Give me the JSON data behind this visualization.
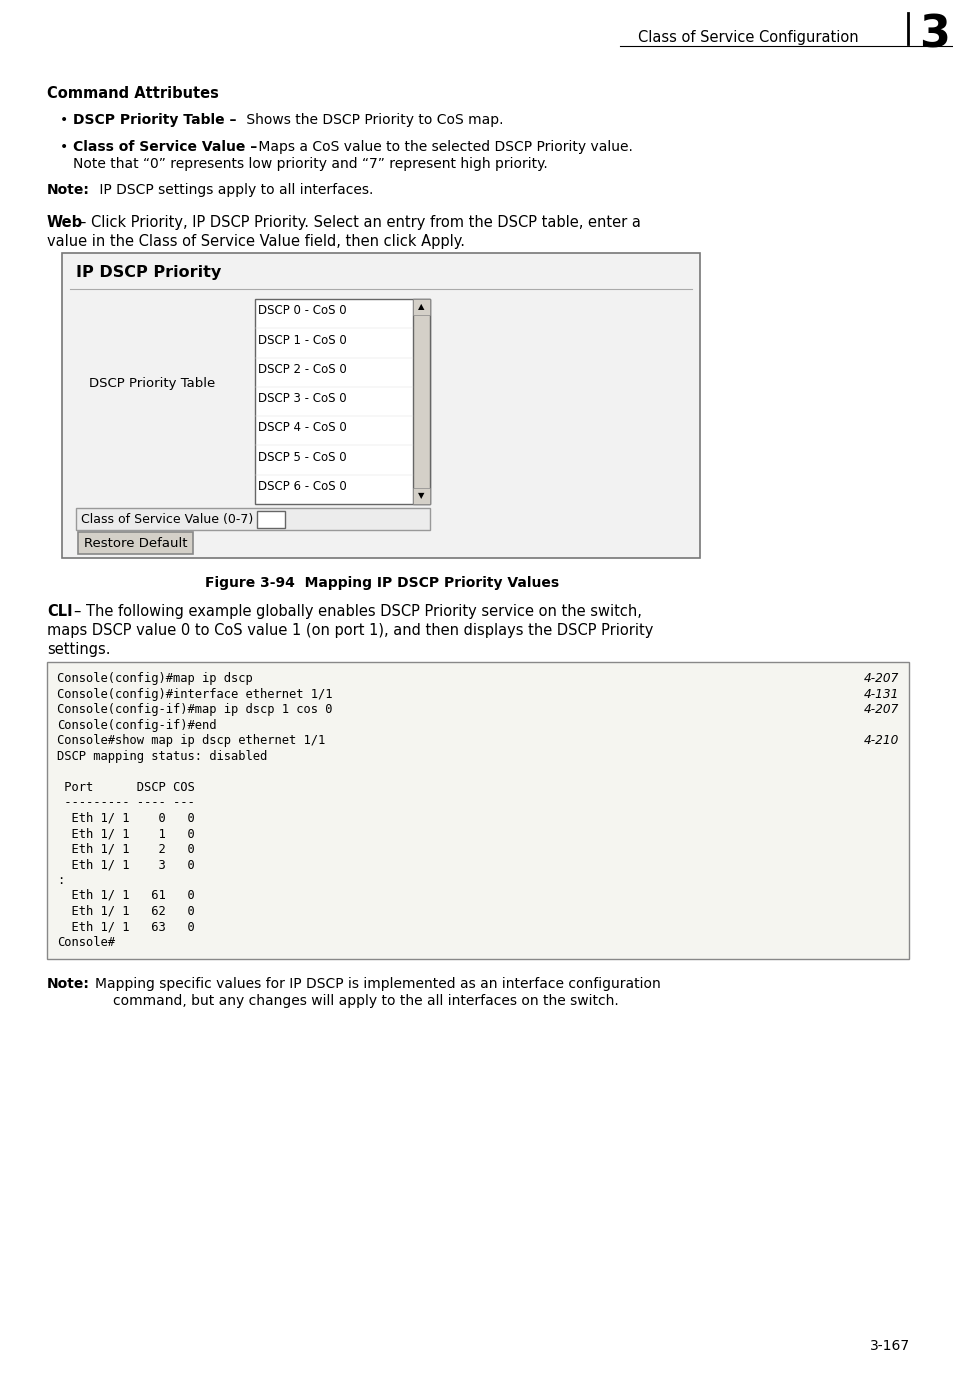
{
  "page_bg": "#ffffff",
  "header_text": "Class of Service Configuration",
  "header_number": "3",
  "section_title": "Command Attributes",
  "note1_bold": "Note:",
  "note1_normal": "  IP DSCP settings apply to all interfaces.",
  "ui_title": "IP DSCP Priority",
  "dscp_list": [
    "DSCP 0 - CoS 0",
    "DSCP 1 - CoS 0",
    "DSCP 2 - CoS 0",
    "DSCP 3 - CoS 0",
    "DSCP 4 - CoS 0",
    "DSCP 5 - CoS 0",
    "DSCP 6 - CoS 0"
  ],
  "dscp_label": "DSCP Priority Table",
  "cos_label": "Class of Service Value (0-7)",
  "button_label": "Restore Default",
  "figure_caption": "Figure 3-94  Mapping IP DSCP Priority Values",
  "code_lines": [
    {
      "left": "Console(config)#map ip dscp",
      "right": "4-207"
    },
    {
      "left": "Console(config)#interface ethernet 1/1",
      "right": "4-131"
    },
    {
      "left": "Console(config-if)#map ip dscp 1 cos 0",
      "right": "4-207"
    },
    {
      "left": "Console(config-if)#end",
      "right": ""
    },
    {
      "left": "Console#show map ip dscp ethernet 1/1",
      "right": "4-210"
    },
    {
      "left": "DSCP mapping status: disabled",
      "right": ""
    },
    {
      "left": "",
      "right": ""
    },
    {
      "left": " Port      DSCP COS",
      "right": ""
    },
    {
      "left": " --------- ---- ---",
      "right": ""
    },
    {
      "left": "  Eth 1/ 1    0   0",
      "right": ""
    },
    {
      "left": "  Eth 1/ 1    1   0",
      "right": ""
    },
    {
      "left": "  Eth 1/ 1    2   0",
      "right": ""
    },
    {
      "left": "  Eth 1/ 1    3   0",
      "right": ""
    },
    {
      "left": ":",
      "right": ""
    },
    {
      "left": "  Eth 1/ 1   61   0",
      "right": ""
    },
    {
      "left": "  Eth 1/ 1   62   0",
      "right": ""
    },
    {
      "left": "  Eth 1/ 1   63   0",
      "right": ""
    },
    {
      "left": "Console#",
      "right": ""
    }
  ],
  "page_num": "3-167"
}
